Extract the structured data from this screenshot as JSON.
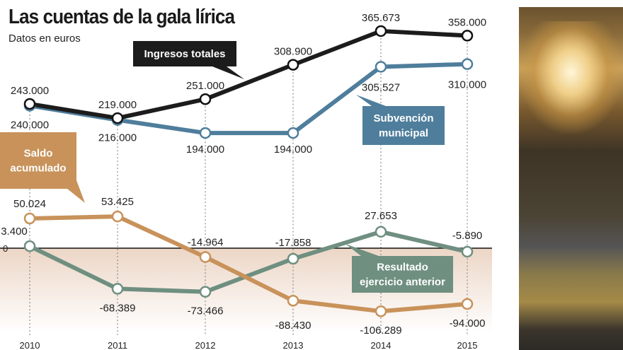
{
  "title": "Las cuentas de la gala lírica",
  "subtitle": "Datos en euros",
  "chart_data": {
    "type": "line",
    "x": [
      "2010",
      "2011",
      "2012",
      "2013",
      "2014",
      "2015"
    ],
    "ylim": [
      -171500,
      418000
    ],
    "zero_label": "0",
    "series": [
      {
        "name": "Ingresos totales",
        "color": "#1c1c1c",
        "values": [
          243000,
          219000,
          251000,
          308900,
          365673,
          358000
        ],
        "labels": [
          "243.000",
          "219.000",
          "251.000",
          "308.900",
          "365.673",
          "358.000"
        ]
      },
      {
        "name": "Subvención municipal",
        "color": "#4f7e9c",
        "values": [
          240000,
          216000,
          194000,
          194000,
          305527,
          310000
        ],
        "labels": [
          "240.000",
          "216.000",
          "194.000",
          "194.000",
          "305.527",
          "310.000"
        ]
      },
      {
        "name": "Saldo acumulado",
        "color": "#c8925a",
        "values": [
          50024,
          53425,
          -14964,
          -88430,
          -106289,
          -94000
        ],
        "labels": [
          "50.024",
          "53.425",
          "-14.964",
          "-88.430",
          "-106.289",
          "-94.000"
        ]
      },
      {
        "name": "Resultado ejercicio anterior",
        "color": "#6f8f80",
        "values": [
          3400,
          -68389,
          -73466,
          -17858,
          27653,
          -5890
        ],
        "labels": [
          "3.400",
          "-68.389",
          "-73.466",
          "-17.858",
          "27.653",
          "-5.890"
        ]
      }
    ],
    "callouts": [
      [
        "Ingresos totales"
      ],
      [
        "Subvención",
        "municipal"
      ],
      [
        "Saldo",
        "acumulado"
      ],
      [
        "Resultado",
        "ejercicio anterior"
      ]
    ]
  }
}
